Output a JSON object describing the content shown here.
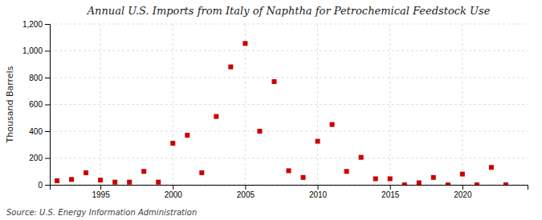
{
  "chart_data": {
    "type": "scatter",
    "title": "Annual U.S. Imports from Italy of Naphtha for Petrochemical Feedstock Use",
    "ylabel": "Thousand Barrels",
    "source": "Source: U.S. Energy Information Administration",
    "x": [
      1992,
      1993,
      1994,
      1995,
      1996,
      1997,
      1998,
      1999,
      2000,
      2001,
      2002,
      2003,
      2004,
      2005,
      2006,
      2007,
      2008,
      2009,
      2010,
      2011,
      2012,
      2013,
      2014,
      2015,
      2016,
      2017,
      2018,
      2019,
      2020,
      2021,
      2022,
      2023
    ],
    "values": [
      30,
      40,
      90,
      35,
      20,
      20,
      100,
      20,
      310,
      370,
      90,
      510,
      880,
      1055,
      400,
      770,
      105,
      55,
      325,
      450,
      100,
      205,
      45,
      45,
      0,
      15,
      55,
      0,
      80,
      0,
      130,
      0
    ],
    "color": "#cc0000",
    "marker": "square",
    "xlim": [
      1991.5,
      2024.5
    ],
    "xticks": [
      1995,
      2000,
      2005,
      2010,
      2015,
      2020
    ],
    "ylim": [
      0,
      1200
    ],
    "yticks": [
      0,
      200,
      400,
      600,
      800,
      {
        "value": 1000,
        "label": "1,000"
      },
      {
        "value": 1200,
        "label": "1,200"
      }
    ],
    "grid": true
  }
}
